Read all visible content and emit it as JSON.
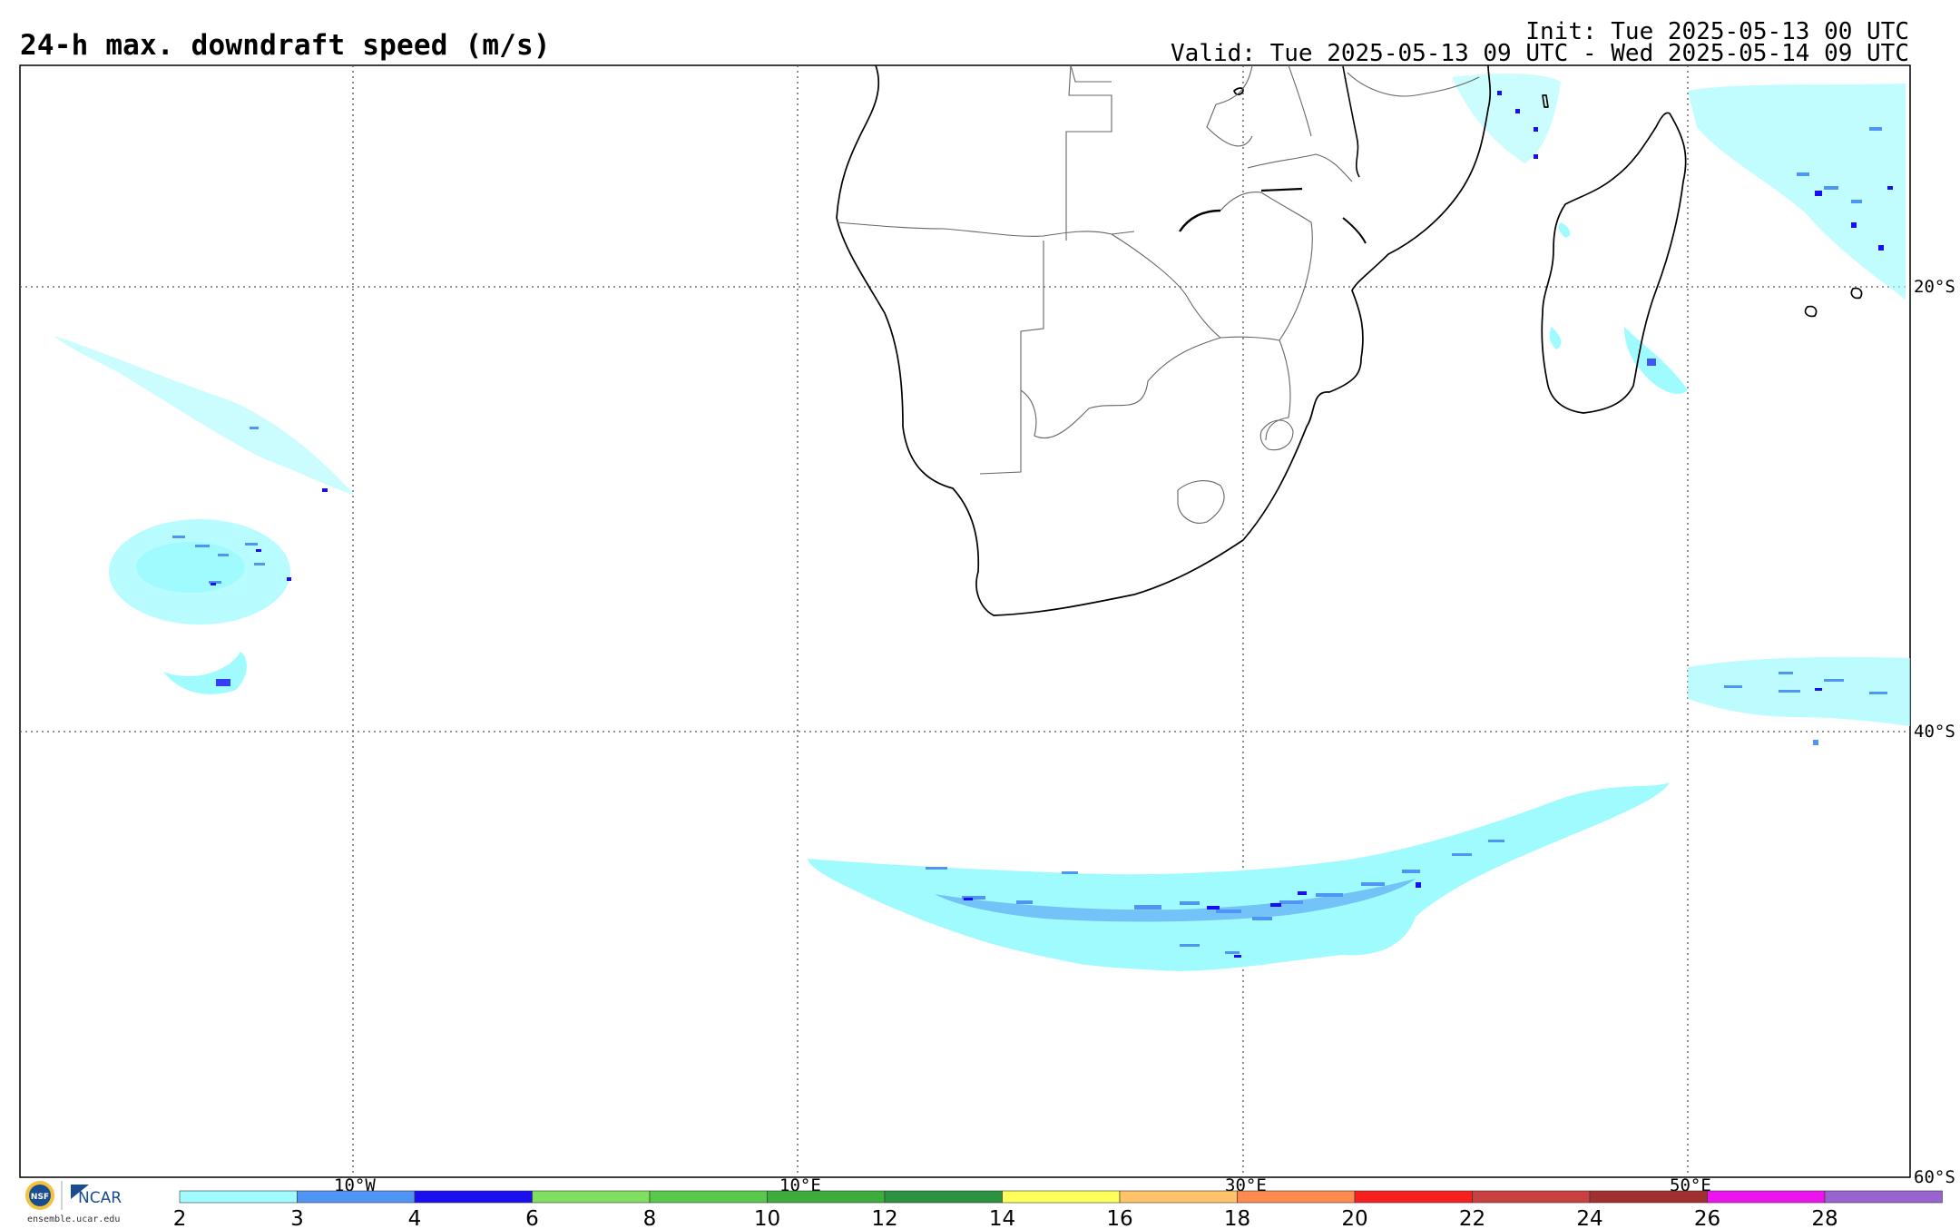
{
  "header": {
    "title": "24-h max. downdraft speed (m/s)",
    "init": "Init: Tue 2025-05-13 00 UTC",
    "valid": "Valid: Tue 2025-05-13 09 UTC - Wed 2025-05-14 09 UTC"
  },
  "map": {
    "longitude_labels": [
      "10°W",
      "10°E",
      "30°E",
      "50°E"
    ],
    "latitude_labels": [
      "20°S",
      "40°S",
      "60°S"
    ]
  },
  "logos": {
    "nsf_text": "NSF",
    "ncar_text": "NCAR",
    "site": "ensemble.ucar.edu"
  },
  "colorbar": {
    "labels": [
      "2",
      "3",
      "4",
      "6",
      "8",
      "10",
      "12",
      "14",
      "16",
      "18",
      "20",
      "22",
      "24",
      "26",
      "28"
    ],
    "colors": [
      "#a0fbff",
      "#5095f3",
      "#1a0ff1",
      "#7fe05f",
      "#58c94a",
      "#3cad3c",
      "#2a9240",
      "#ffff5a",
      "#ffc46a",
      "#ff8a50",
      "#f7201c",
      "#c94040",
      "#a03030",
      "#ec14ec",
      "#9864d0"
    ]
  }
}
